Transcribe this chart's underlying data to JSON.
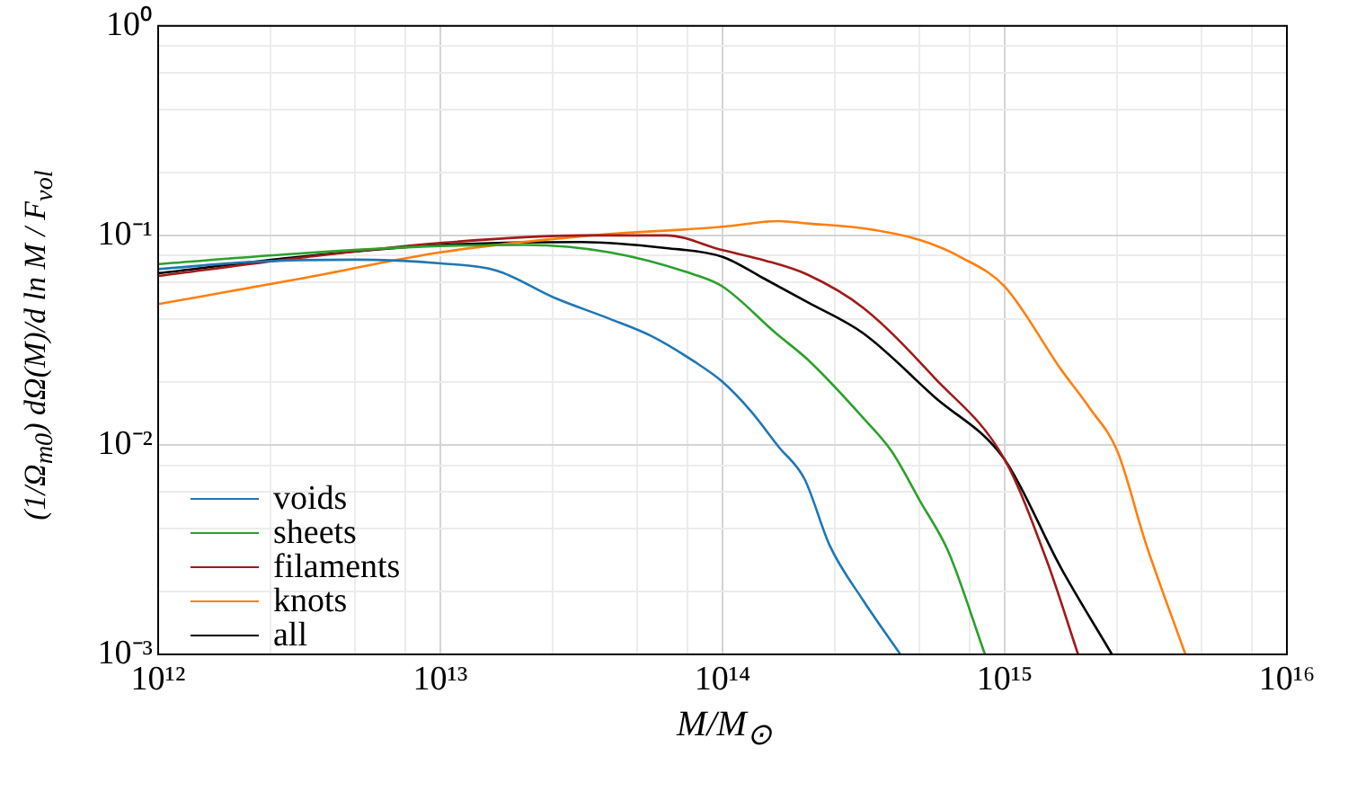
{
  "chart_data": {
    "type": "line",
    "xlabel": "M/M$_{⊙}$",
    "ylabel": "(1/Ω$_{m0}$) dΩ(M)/d ln M / F$_{vol}$",
    "log": "xy",
    "grid": true,
    "legend": "bottom left",
    "xlim": [
      1000000000000.0,
      1e+16
    ],
    "ylim": [
      0.001,
      1
    ],
    "xticks": [
      {
        "value": 1000000000000.0,
        "label": "10¹²"
      },
      {
        "value": 2500000000000.0,
        "label": null
      },
      {
        "value": 5000000000000.0,
        "label": null
      },
      {
        "value": 7500000000000.0,
        "label": null
      },
      {
        "value": 10000000000000.0,
        "label": "10¹³"
      },
      {
        "value": 25000000000000.0,
        "label": null
      },
      {
        "value": 50000000000000.0,
        "label": null
      },
      {
        "value": 75000000000000.0,
        "label": null
      },
      {
        "value": 100000000000000.0,
        "label": "10¹⁴"
      },
      {
        "value": 250000000000000.0,
        "label": null
      },
      {
        "value": 500000000000000.0,
        "label": null
      },
      {
        "value": 750000000000000.0,
        "label": null
      },
      {
        "value": 1000000000000000.0,
        "label": "10¹⁵"
      },
      {
        "value": 2500000000000000.0,
        "label": null
      },
      {
        "value": 5000000000000000.0,
        "label": null
      },
      {
        "value": 7500000000000000.0,
        "label": null
      },
      {
        "value": 1e+16,
        "label": "10¹⁶"
      }
    ],
    "yticks": [
      {
        "value": 0.001,
        "label": "10⁻³"
      },
      {
        "value": 0.002,
        "label": null
      },
      {
        "value": 0.004,
        "label": null
      },
      {
        "value": 0.006,
        "label": null
      },
      {
        "value": 0.008,
        "label": null
      },
      {
        "value": 0.01,
        "label": "10⁻²"
      },
      {
        "value": 0.02,
        "label": null
      },
      {
        "value": 0.04,
        "label": null
      },
      {
        "value": 0.06,
        "label": null
      },
      {
        "value": 0.08,
        "label": null
      },
      {
        "value": 0.1,
        "label": "10⁻¹"
      },
      {
        "value": 0.2,
        "label": null
      },
      {
        "value": 0.4,
        "label": null
      },
      {
        "value": 0.6,
        "label": null
      },
      {
        "value": 0.8,
        "label": null
      },
      {
        "value": 1,
        "label": "10⁰"
      }
    ],
    "series": [
      {
        "name": "voids",
        "color": "#1f77b4",
        "x": [
          1000000000000.0,
          2240000000000.0,
          5010000000000.0,
          10000000000000.0,
          15800000000000.0,
          25700000000000.0,
          39800000000000.0,
          56200000000000.0,
          79400000000000.0,
          100000000000000.0,
          126000000000000.0,
          158000000000000.0,
          195000000000000.0,
          240000000000000.0,
          316000000000000.0,
          427000000000000.0
        ],
        "values": [
          0.069,
          0.075,
          0.0766,
          0.0735,
          0.068,
          0.05,
          0.04,
          0.033,
          0.025,
          0.02,
          0.0145,
          0.0098,
          0.0069,
          0.0033,
          0.0018,
          0.001
        ]
      },
      {
        "name": "sheets",
        "color": "#2ca02c",
        "x": [
          1000000000000.0,
          3160000000000.0,
          10000000000000.0,
          20000000000000.0,
          39800000000000.0,
          79400000000000.0,
          100000000000000.0,
          155000000000000.0,
          200000000000000.0,
          316000000000000.0,
          398000000000000.0,
          501000000000000.0,
          631000000000000.0,
          851000000000000.0
        ],
        "values": [
          0.073,
          0.082,
          0.089,
          0.09,
          0.083,
          0.065,
          0.057,
          0.034,
          0.0256,
          0.0134,
          0.0093,
          0.0054,
          0.0031,
          0.001
        ]
      },
      {
        "name": "filaments",
        "color": "#a11a1a",
        "x": [
          1000000000000.0,
          3160000000000.0,
          10000000000000.0,
          31600000000000.0,
          63100000000000.0,
          100000000000000.0,
          141000000000000.0,
          200000000000000.0,
          316000000000000.0,
          562000000000000.0,
          1000000000000000.0,
          1410000000000000.0,
          1820000000000000.0
        ],
        "values": [
          0.064,
          0.078,
          0.092,
          0.1,
          0.1,
          0.085,
          0.076,
          0.065,
          0.045,
          0.021,
          0.0085,
          0.0028,
          0.001
        ]
      },
      {
        "name": "knots",
        "color": "#ff7f0e",
        "x": [
          1000000000000.0,
          3160000000000.0,
          10000000000000.0,
          31600000000000.0,
          100000000000000.0,
          158000000000000.0,
          200000000000000.0,
          316000000000000.0,
          501000000000000.0,
          708000000000000.0,
          1000000000000000.0,
          1580000000000000.0,
          2000000000000000.0,
          2510000000000000.0,
          3160000000000000.0,
          4370000000000000.0
        ],
        "values": [
          0.047,
          0.062,
          0.083,
          0.099,
          0.11,
          0.117,
          0.114,
          0.108,
          0.095,
          0.078,
          0.057,
          0.023,
          0.015,
          0.0093,
          0.0034,
          0.001
        ]
      },
      {
        "name": "all",
        "color": "#000000",
        "x": [
          1000000000000.0,
          3160000000000.0,
          10000000000000.0,
          31600000000000.0,
          63100000000000.0,
          100000000000000.0,
          141000000000000.0,
          200000000000000.0,
          316000000000000.0,
          562000000000000.0,
          1000000000000000.0,
          1580000000000000.0,
          2400000000000000.0
        ],
        "values": [
          0.066,
          0.079,
          0.09,
          0.093,
          0.087,
          0.079,
          0.062,
          0.048,
          0.034,
          0.017,
          0.0085,
          0.0026,
          0.001
        ]
      }
    ]
  }
}
